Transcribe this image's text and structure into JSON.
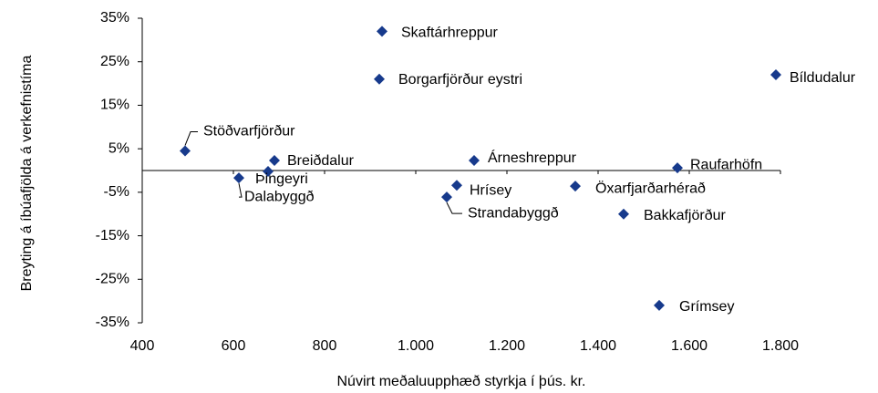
{
  "chart_data": {
    "type": "scatter",
    "x_label": "Núvirt meðaluupphæð styrkja í þús. kr.",
    "y_label": "Breyting á íbúafjölda á verkefnistíma",
    "color": "#173a8c",
    "points": [
      {
        "name": "Skaftárhreppur",
        "x": 926,
        "y": 32
      },
      {
        "name": "Borgarfjörður eystri",
        "x": 920,
        "y": 21
      },
      {
        "name": "Bíldudalur",
        "x": 1790,
        "y": 22
      },
      {
        "name": "Stöðvarfjörður",
        "x": 494,
        "y": 4.5
      },
      {
        "name": "Breiðdalur",
        "x": 690,
        "y": 2.3
      },
      {
        "name": "Þingeyri",
        "x": 676,
        "y": -0.2
      },
      {
        "name": "Dalabyggð",
        "x": 612,
        "y": -1.7
      },
      {
        "name": "Árneshreppur",
        "x": 1128,
        "y": 2.3
      },
      {
        "name": "Hrísey",
        "x": 1090,
        "y": -3.4
      },
      {
        "name": "Strandabyggð",
        "x": 1068,
        "y": -6.1
      },
      {
        "name": "Öxarfjarðarhérað",
        "x": 1350,
        "y": -3.6
      },
      {
        "name": "Bakkafjörður",
        "x": 1456,
        "y": -10
      },
      {
        "name": "Raufarhöfn",
        "x": 1574,
        "y": 0.6
      },
      {
        "name": "Grímsey",
        "x": 1534,
        "y": -31
      }
    ],
    "xlim": [
      400,
      1800
    ],
    "xticks": [
      400,
      600,
      800,
      {
        "value": 1000,
        "label": "1.000"
      },
      {
        "value": 1200,
        "label": "1.200"
      },
      {
        "value": 1400,
        "label": "1.400"
      },
      {
        "value": 1600,
        "label": "1.600"
      },
      {
        "value": 1800,
        "label": "1.800"
      }
    ],
    "ylim": [
      -35,
      35
    ],
    "yticks": [
      {
        "value": 35,
        "label": "35%"
      },
      {
        "value": 25,
        "label": "25%"
      },
      {
        "value": 15,
        "label": "15%"
      },
      {
        "value": 5,
        "label": "5%"
      },
      {
        "value": -5,
        "label": "-5%"
      },
      {
        "value": -15,
        "label": "-15%"
      },
      {
        "value": -25,
        "label": "-25%"
      },
      {
        "value": -35,
        "label": "-35%"
      }
    ]
  }
}
